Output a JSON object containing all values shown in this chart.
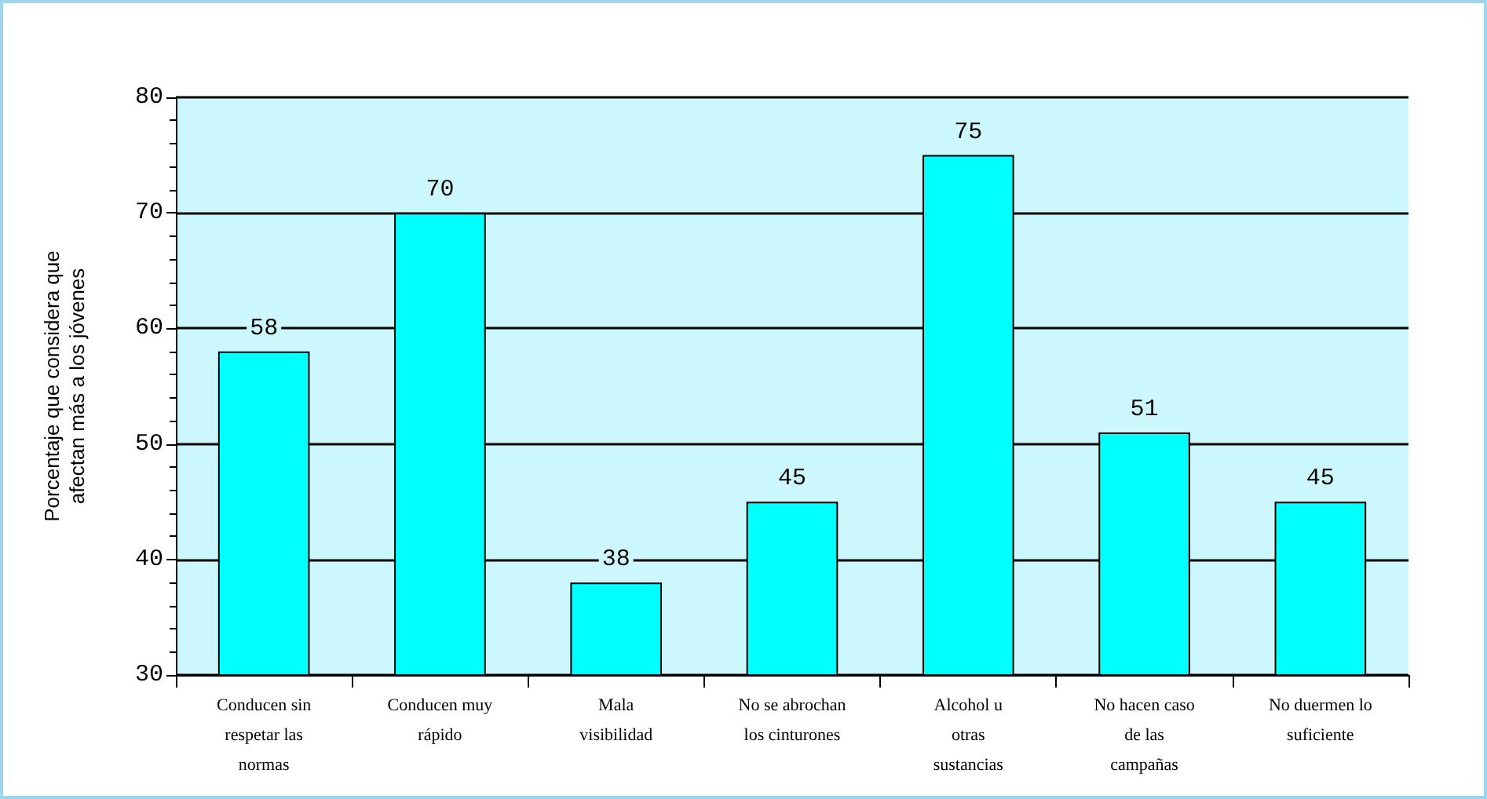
{
  "chart_data": {
    "type": "bar",
    "ylabel": "Porcentaje que considera que\nafectan más a los jóvenes",
    "categories": [
      "Conducen sin\nrespetar las\nnormas",
      "Conducen muy\nrápido",
      "Mala\nvisibilidad",
      "No se abrochan\nlos cinturones",
      "Alcohol u\notras\nsustancias",
      "No hacen caso\nde las\ncampañas",
      "No duermen lo\nsuficiente"
    ],
    "values": [
      58,
      70,
      38,
      45,
      75,
      51,
      45
    ],
    "color": "#00ffff",
    "ylim": [
      30,
      80
    ],
    "yticks": [
      30,
      40,
      50,
      60,
      70,
      80
    ],
    "grid": "y",
    "data_labels": true
  }
}
